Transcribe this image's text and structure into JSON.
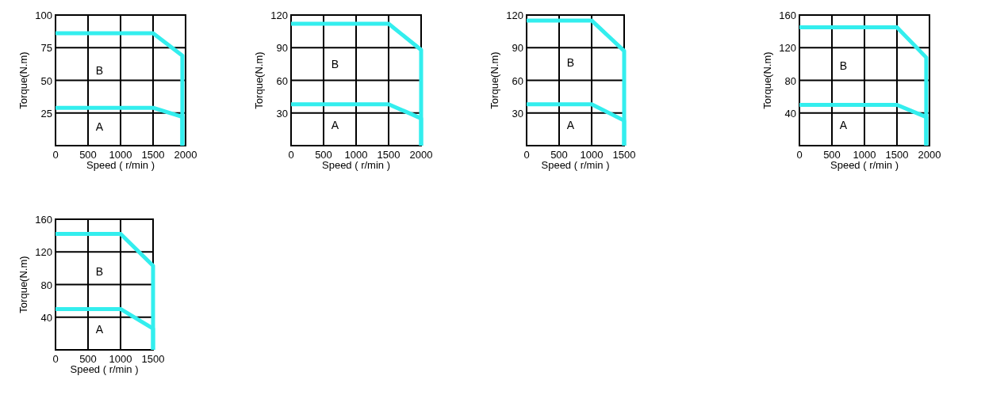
{
  "chart_data": [
    {
      "type": "line",
      "xlabel": "Speed ( r/min )",
      "ylabel": "Torque(N.m)",
      "xlim": [
        0,
        2000
      ],
      "ylim": [
        0,
        100
      ],
      "xticks": [
        0,
        500,
        1000,
        1500,
        2000
      ],
      "yticks": [
        25,
        50,
        75,
        100
      ],
      "grid": true,
      "annotations": [
        "B",
        "A"
      ],
      "series": [
        {
          "color": "#33eeee",
          "x": [
            0,
            1500,
            1950,
            1950
          ],
          "values": [
            29,
            29,
            22,
            0
          ]
        },
        {
          "color": "#33eeee",
          "x": [
            0,
            1500,
            1950,
            1950
          ],
          "values": [
            86,
            86,
            69,
            0
          ]
        }
      ]
    },
    {
      "type": "line",
      "xlabel": "Speed ( r/min )",
      "ylabel": "Torque(N.m)",
      "xlim": [
        0,
        2000
      ],
      "ylim": [
        0,
        120
      ],
      "xticks": [
        0,
        500,
        1000,
        1500,
        2000
      ],
      "yticks": [
        30,
        60,
        90,
        120
      ],
      "grid": true,
      "annotations": [
        "B",
        "A"
      ],
      "series": [
        {
          "color": "#33eeee",
          "x": [
            0,
            1500,
            2000,
            2000
          ],
          "values": [
            38,
            38,
            25,
            0
          ]
        },
        {
          "color": "#33eeee",
          "x": [
            0,
            1500,
            2000,
            2000
          ],
          "values": [
            112,
            112,
            88,
            0
          ]
        }
      ]
    },
    {
      "type": "line",
      "xlabel": "Speed ( r/min )",
      "ylabel": "Torque(N.m)",
      "xlim": [
        0,
        1500
      ],
      "ylim": [
        0,
        120
      ],
      "xticks": [
        0,
        500,
        1000,
        1500
      ],
      "yticks": [
        30,
        60,
        90,
        120
      ],
      "grid": true,
      "annotations": [
        "B",
        "A"
      ],
      "series": [
        {
          "color": "#33eeee",
          "x": [
            0,
            1000,
            1500,
            1500
          ],
          "values": [
            38,
            38,
            23,
            0
          ]
        },
        {
          "color": "#33eeee",
          "x": [
            0,
            1000,
            1500,
            1500
          ],
          "values": [
            115,
            115,
            87,
            0
          ]
        }
      ]
    },
    {
      "type": "line",
      "xlabel": "Speed ( r/min )",
      "ylabel": "Torque(N.m)",
      "xlim": [
        0,
        2000
      ],
      "ylim": [
        0,
        160
      ],
      "xticks": [
        0,
        500,
        1000,
        1500,
        2000
      ],
      "yticks": [
        40,
        80,
        120,
        160
      ],
      "grid": true,
      "annotations": [
        "B",
        "A"
      ],
      "series": [
        {
          "color": "#33eeee",
          "x": [
            0,
            1500,
            1950,
            1950
          ],
          "values": [
            50,
            50,
            35,
            0
          ]
        },
        {
          "color": "#33eeee",
          "x": [
            0,
            1500,
            1950,
            1950
          ],
          "values": [
            145,
            145,
            108,
            0
          ]
        }
      ]
    },
    {
      "type": "line",
      "xlabel": "Speed ( r/min )",
      "ylabel": "Torque(N.m)",
      "xlim": [
        0,
        1500
      ],
      "ylim": [
        0,
        160
      ],
      "xticks": [
        0,
        500,
        1000,
        1500
      ],
      "yticks": [
        40,
        80,
        120,
        160
      ],
      "grid": true,
      "annotations": [
        "B",
        "A"
      ],
      "series": [
        {
          "color": "#33eeee",
          "x": [
            0,
            1000,
            1500,
            1500
          ],
          "values": [
            50,
            50,
            26,
            0
          ]
        },
        {
          "color": "#33eeee",
          "x": [
            0,
            1000,
            1500,
            1500
          ],
          "values": [
            142,
            142,
            103,
            0
          ]
        }
      ]
    }
  ]
}
